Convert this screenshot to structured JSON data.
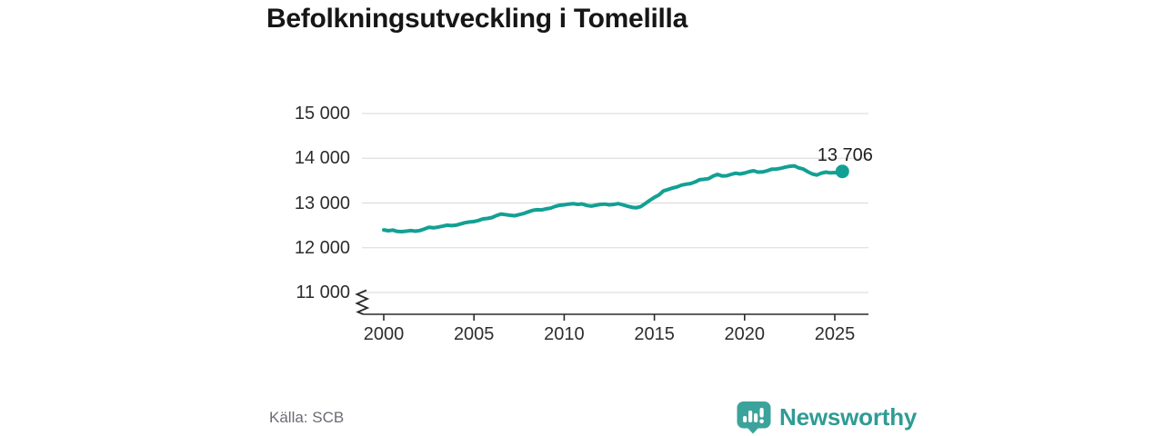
{
  "chart_data": {
    "type": "line",
    "title": "Befolkningsutveckling i Tomelilla",
    "xlabel": "",
    "ylabel": "",
    "grid": "horizontal",
    "axis_break_at_bottom": true,
    "xlim": [
      1998.8,
      2026.9
    ],
    "ylim": [
      11000,
      15000
    ],
    "x_ticks": [
      {
        "value": 2000,
        "label": "2000"
      },
      {
        "value": 2005,
        "label": "2005"
      },
      {
        "value": 2010,
        "label": "2010"
      },
      {
        "value": 2015,
        "label": "2015"
      },
      {
        "value": 2020,
        "label": "2020"
      },
      {
        "value": 2025,
        "label": "2025"
      }
    ],
    "y_ticks": [
      {
        "value": 15000,
        "label": "15 000"
      },
      {
        "value": 14000,
        "label": "14 000"
      },
      {
        "value": 13000,
        "label": "13 000"
      },
      {
        "value": 12000,
        "label": "12 000"
      },
      {
        "value": 11000,
        "label": "11 000"
      }
    ],
    "end_point": {
      "x": 2025.42,
      "value": 13706,
      "label": "13 706"
    },
    "series": [
      {
        "name": "population",
        "color": "#13a094",
        "points": [
          [
            2000,
            12400
          ],
          [
            2000.25,
            12380
          ],
          [
            2000.5,
            12395
          ],
          [
            2000.75,
            12365
          ],
          [
            2001,
            12360
          ],
          [
            2001.25,
            12370
          ],
          [
            2001.5,
            12385
          ],
          [
            2001.75,
            12370
          ],
          [
            2002,
            12385
          ],
          [
            2002.25,
            12420
          ],
          [
            2002.5,
            12455
          ],
          [
            2002.75,
            12445
          ],
          [
            2003,
            12460
          ],
          [
            2003.25,
            12480
          ],
          [
            2003.5,
            12505
          ],
          [
            2003.75,
            12495
          ],
          [
            2004,
            12505
          ],
          [
            2004.25,
            12530
          ],
          [
            2004.5,
            12560
          ],
          [
            2004.75,
            12575
          ],
          [
            2005,
            12585
          ],
          [
            2005.25,
            12610
          ],
          [
            2005.5,
            12645
          ],
          [
            2005.75,
            12655
          ],
          [
            2006,
            12675
          ],
          [
            2006.25,
            12720
          ],
          [
            2006.5,
            12755
          ],
          [
            2006.75,
            12740
          ],
          [
            2007,
            12725
          ],
          [
            2007.25,
            12715
          ],
          [
            2007.5,
            12740
          ],
          [
            2007.75,
            12765
          ],
          [
            2008,
            12800
          ],
          [
            2008.25,
            12835
          ],
          [
            2008.5,
            12850
          ],
          [
            2008.75,
            12845
          ],
          [
            2009,
            12870
          ],
          [
            2009.25,
            12885
          ],
          [
            2009.5,
            12925
          ],
          [
            2009.75,
            12950
          ],
          [
            2010,
            12960
          ],
          [
            2010.25,
            12975
          ],
          [
            2010.5,
            12985
          ],
          [
            2010.75,
            12970
          ],
          [
            2011,
            12980
          ],
          [
            2011.25,
            12945
          ],
          [
            2011.5,
            12930
          ],
          [
            2011.75,
            12950
          ],
          [
            2012,
            12970
          ],
          [
            2012.25,
            12975
          ],
          [
            2012.5,
            12960
          ],
          [
            2012.75,
            12970
          ],
          [
            2013,
            12985
          ],
          [
            2013.25,
            12960
          ],
          [
            2013.5,
            12930
          ],
          [
            2013.75,
            12905
          ],
          [
            2014,
            12895
          ],
          [
            2014.25,
            12920
          ],
          [
            2014.5,
            12990
          ],
          [
            2014.75,
            13060
          ],
          [
            2015,
            13125
          ],
          [
            2015.25,
            13180
          ],
          [
            2015.5,
            13270
          ],
          [
            2015.75,
            13300
          ],
          [
            2016,
            13335
          ],
          [
            2016.25,
            13360
          ],
          [
            2016.5,
            13400
          ],
          [
            2016.75,
            13420
          ],
          [
            2017,
            13435
          ],
          [
            2017.25,
            13470
          ],
          [
            2017.5,
            13520
          ],
          [
            2017.75,
            13530
          ],
          [
            2018,
            13545
          ],
          [
            2018.25,
            13600
          ],
          [
            2018.5,
            13640
          ],
          [
            2018.75,
            13605
          ],
          [
            2019,
            13610
          ],
          [
            2019.25,
            13640
          ],
          [
            2019.5,
            13665
          ],
          [
            2019.75,
            13650
          ],
          [
            2020,
            13670
          ],
          [
            2020.25,
            13700
          ],
          [
            2020.5,
            13720
          ],
          [
            2020.75,
            13690
          ],
          [
            2021,
            13695
          ],
          [
            2021.25,
            13720
          ],
          [
            2021.5,
            13755
          ],
          [
            2021.75,
            13760
          ],
          [
            2022,
            13775
          ],
          [
            2022.25,
            13800
          ],
          [
            2022.5,
            13820
          ],
          [
            2022.75,
            13830
          ],
          [
            2023,
            13785
          ],
          [
            2023.25,
            13760
          ],
          [
            2023.5,
            13700
          ],
          [
            2023.75,
            13650
          ],
          [
            2024,
            13625
          ],
          [
            2024.25,
            13665
          ],
          [
            2024.5,
            13690
          ],
          [
            2024.75,
            13675
          ],
          [
            2025,
            13680
          ],
          [
            2025.25,
            13678
          ],
          [
            2025.42,
            13706
          ]
        ]
      }
    ],
    "colors": {
      "line": "#13a094",
      "grid": "#d8d8d8",
      "axis": "#2a2a2a",
      "title_text": "#161616",
      "tick_text": "#2d2d2d",
      "source_text": "#6b6b74"
    }
  },
  "footer": {
    "source": "Källa: SCB",
    "brand": "Newsworthy",
    "brand_icon": "bar-chart-speech-bubble-icon",
    "brand_color": "#2f9c94",
    "logo_color": "#3ba39b"
  }
}
